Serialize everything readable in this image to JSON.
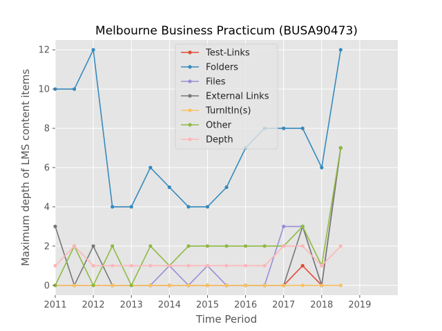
{
  "chart_data": {
    "type": "line",
    "title": "Melbourne Business Practicum (BUSA90473)",
    "xlabel": "Time Period",
    "ylabel": "Maximum depth of LMS content items",
    "xlim": [
      2011,
      2020
    ],
    "ylim": [
      -0.5,
      12.5
    ],
    "xticks": [
      "2011",
      "2012",
      "2013",
      "2014",
      "2015",
      "2016",
      "2017",
      "2018",
      "2019"
    ],
    "yticks": [
      "0",
      "2",
      "4",
      "6",
      "8",
      "10",
      "12"
    ],
    "grid": true,
    "legend_position": "upper center",
    "x": [
      2011.0,
      2011.5,
      2012.0,
      2012.5,
      2013.0,
      2013.5,
      2014.0,
      2014.5,
      2015.0,
      2015.5,
      2016.0,
      2016.5,
      2017.0,
      2017.5,
      2018.0,
      2018.5
    ],
    "series": [
      {
        "name": "Test-Links",
        "color": "#E24A33",
        "values": [
          0,
          0,
          0,
          0,
          0,
          0,
          0,
          0,
          0,
          0,
          0,
          0,
          0,
          1,
          0,
          7
        ]
      },
      {
        "name": "Folders",
        "color": "#348ABD",
        "values": [
          10,
          10,
          12,
          4,
          4,
          6,
          5,
          4,
          4,
          5,
          7,
          8,
          8,
          8,
          6,
          12
        ]
      },
      {
        "name": "Files",
        "color": "#988ED5",
        "values": [
          0,
          0,
          0,
          0,
          0,
          0,
          1,
          0,
          1,
          0,
          0,
          0,
          3,
          3,
          0,
          7
        ]
      },
      {
        "name": "External Links",
        "color": "#777777",
        "values": [
          3,
          0,
          2,
          0,
          0,
          0,
          0,
          0,
          0,
          0,
          0,
          0,
          0,
          3,
          0,
          7
        ]
      },
      {
        "name": "TurnItIn(s)",
        "color": "#FBC15E",
        "values": [
          0,
          0,
          0,
          0,
          0,
          0,
          0,
          0,
          0,
          0,
          0,
          0,
          0,
          0,
          0,
          0
        ]
      },
      {
        "name": "Other",
        "color": "#8EBA42",
        "values": [
          0,
          2,
          0,
          2,
          0,
          2,
          1,
          2,
          2,
          2,
          2,
          2,
          2,
          3,
          1,
          7
        ]
      },
      {
        "name": "Depth",
        "color": "#FFB5B8",
        "values": [
          1,
          2,
          1,
          1,
          1,
          1,
          1,
          1,
          1,
          1,
          1,
          1,
          2,
          2,
          1,
          2
        ]
      }
    ]
  }
}
